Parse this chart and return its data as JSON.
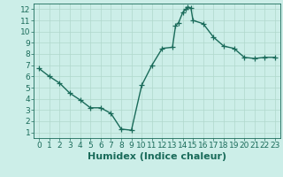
{
  "x": [
    0,
    1,
    2,
    3,
    4,
    5,
    6,
    7,
    8,
    9,
    10,
    11,
    12,
    13,
    13.3,
    13.6,
    14,
    14.3,
    14.5,
    14.8,
    15,
    16,
    17,
    18,
    19,
    20,
    21,
    22,
    23
  ],
  "y": [
    6.7,
    6.0,
    5.4,
    4.5,
    3.9,
    3.2,
    3.2,
    2.7,
    1.3,
    1.2,
    5.2,
    7.0,
    8.5,
    8.6,
    10.5,
    10.8,
    11.7,
    12.0,
    12.2,
    12.1,
    11.0,
    10.7,
    9.5,
    8.7,
    8.5,
    7.7,
    7.6,
    7.7,
    7.7
  ],
  "line_color": "#1a6b5a",
  "marker": "+",
  "marker_size": 4,
  "bg_color": "#cceee8",
  "grid_color": "#b0d8cc",
  "xlabel": "Humidex (Indice chaleur)",
  "xlim": [
    -0.5,
    23.5
  ],
  "ylim": [
    0.5,
    12.5
  ],
  "xticks": [
    0,
    1,
    2,
    3,
    4,
    5,
    6,
    7,
    8,
    9,
    10,
    11,
    12,
    13,
    14,
    15,
    16,
    17,
    18,
    19,
    20,
    21,
    22,
    23
  ],
  "yticks": [
    1,
    2,
    3,
    4,
    5,
    6,
    7,
    8,
    9,
    10,
    11,
    12
  ],
  "tick_fontsize": 6.5,
  "xlabel_fontsize": 8,
  "axis_color": "#1a6b5a",
  "linewidth": 1.0
}
